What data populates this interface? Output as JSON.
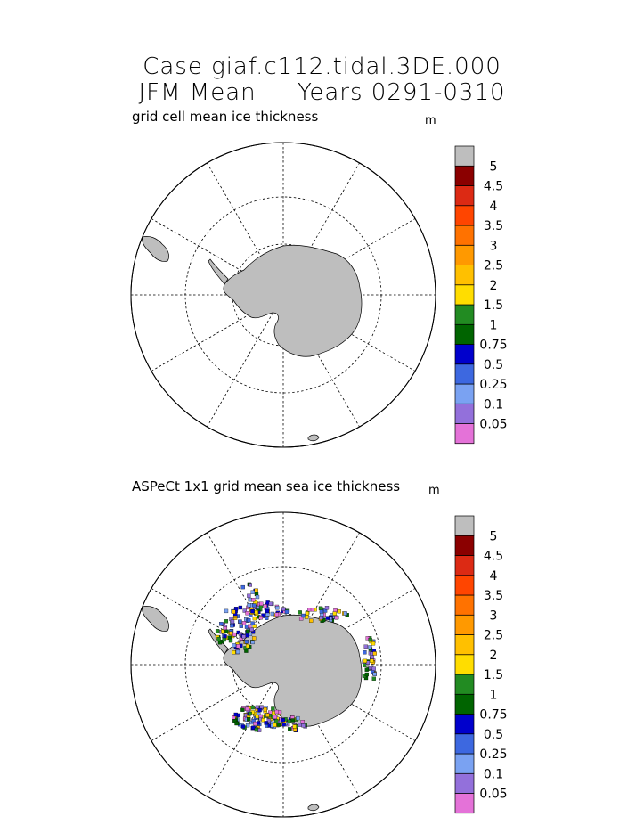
{
  "header": {
    "title_line1": "Case giaf.c112.tidal.3DE.000",
    "title_line2": "JFM Mean     Years 0291-0310"
  },
  "panels": [
    {
      "subtitle": "grid cell mean ice thickness",
      "unit": "m",
      "colorbar": {
        "colors": [
          "#e472d8",
          "#9370db",
          "#7aa2f2",
          "#3d68e0",
          "#0000cc",
          "#006400",
          "#228b22",
          "#ffdd00",
          "#ffc000",
          "#ff9900",
          "#ff7200",
          "#ff4500",
          "#dc2a14",
          "#8b0000",
          "#bebebe"
        ],
        "labels": [
          "0.05",
          "0.1",
          "0.25",
          "0.5",
          "0.75",
          "1",
          "1.5",
          "2",
          "2.5",
          "3",
          "3.5",
          "4",
          "4.5",
          "5"
        ]
      }
    },
    {
      "subtitle": "ASPeCt 1x1 grid mean sea ice thickness",
      "unit": "m",
      "colorbar": {
        "colors": [
          "#e472d8",
          "#9370db",
          "#7aa2f2",
          "#3d68e0",
          "#0000cc",
          "#006400",
          "#228b22",
          "#ffdd00",
          "#ffc000",
          "#ff9900",
          "#ff7200",
          "#ff4500",
          "#dc2a14",
          "#8b0000",
          "#bebebe"
        ],
        "labels": [
          "0.05",
          "0.1",
          "0.25",
          "0.5",
          "0.75",
          "1",
          "1.5",
          "2",
          "2.5",
          "3",
          "3.5",
          "4",
          "4.5",
          "5"
        ]
      }
    }
  ]
}
